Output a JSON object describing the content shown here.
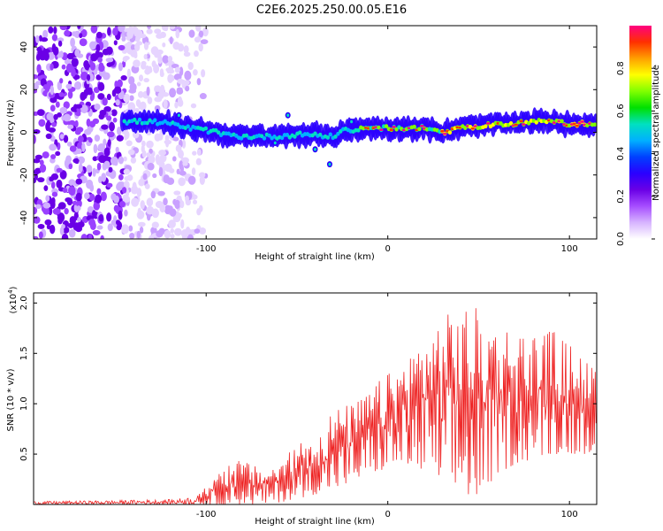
{
  "title": "C2E6.2025.250.00.05.E16",
  "chart_data": [
    {
      "type": "heatmap",
      "name": "spectrogram",
      "xlabel": "Height of straight line (km)",
      "ylabel": "Frequency (Hz)",
      "xlim": [
        -195,
        115
      ],
      "ylim": [
        -50,
        50
      ],
      "xticks": [
        -100,
        0,
        100
      ],
      "yticks": [
        -40,
        -20,
        0,
        20,
        40
      ],
      "colorbar": {
        "label": "Normalized spectral amplitude",
        "range": [
          0,
          1
        ],
        "ticks": [
          "0.0",
          "0.2",
          "0.4",
          "0.6",
          "0.8"
        ],
        "colors": [
          "#ffffff",
          "#d7b4ff",
          "#a64dff",
          "#6a00e6",
          "#2a00ff",
          "#0040ff",
          "#00b0ff",
          "#00e0c0",
          "#00e000",
          "#80ff00",
          "#ffff00",
          "#ffa000",
          "#ff3000",
          "#ff0080"
        ]
      },
      "ridge": {
        "x": [
          -145,
          -130,
          -120,
          -110,
          -100,
          -90,
          -80,
          -70,
          -60,
          -50,
          -40,
          -35,
          -30,
          -25,
          -20,
          -10,
          0,
          10,
          20,
          30,
          40,
          50,
          60,
          70,
          80,
          90,
          100,
          110
        ],
        "freq": [
          5,
          5,
          4,
          2,
          1,
          -1,
          -2,
          -2,
          -2,
          -1,
          -1,
          -2,
          -2,
          1,
          1,
          2,
          2,
          2,
          2,
          0,
          2,
          3,
          4,
          4,
          5,
          5,
          4,
          4
        ]
      }
    },
    {
      "type": "line",
      "name": "snr",
      "xlabel": "Height of straight line (km)",
      "ylabel": "SNR (10 * v/v)",
      "yscale_label": "(x10",
      "yscale_exp": "4",
      "xlim": [
        -195,
        115
      ],
      "ylim": [
        0,
        2.1
      ],
      "xticks": [
        -100,
        0,
        100
      ],
      "ytick_labels": [
        "0.5",
        "1.0",
        "1.5",
        "2.0"
      ],
      "yticks": [
        0.5,
        1.0,
        1.5,
        2.0
      ],
      "color": "#ee2222",
      "envelope": {
        "x": [
          -195,
          -150,
          -120,
          -105,
          -100,
          -90,
          -80,
          -70,
          -60,
          -50,
          -45,
          -40,
          -30,
          -20,
          -15,
          -10,
          0,
          10,
          20,
          30,
          40,
          50,
          60,
          70,
          80,
          90,
          100,
          105,
          110,
          115
        ],
        "max": [
          0.03,
          0.04,
          0.05,
          0.08,
          0.18,
          0.4,
          0.45,
          0.35,
          0.4,
          0.6,
          0.7,
          0.65,
          0.95,
          1.0,
          1.05,
          1.15,
          1.3,
          1.45,
          1.7,
          1.85,
          2.0,
          1.95,
          1.8,
          1.75,
          1.7,
          1.75,
          1.6,
          1.55,
          1.45,
          1.3
        ],
        "min": [
          0.0,
          0.0,
          0.0,
          0.0,
          0.0,
          0.0,
          0.0,
          0.0,
          0.02,
          0.05,
          0.08,
          0.1,
          0.15,
          0.2,
          0.25,
          0.3,
          0.35,
          0.4,
          0.3,
          0.2,
          0.1,
          0.05,
          0.3,
          0.4,
          0.45,
          0.5,
          0.5,
          0.5,
          0.5,
          0.6
        ]
      }
    }
  ]
}
